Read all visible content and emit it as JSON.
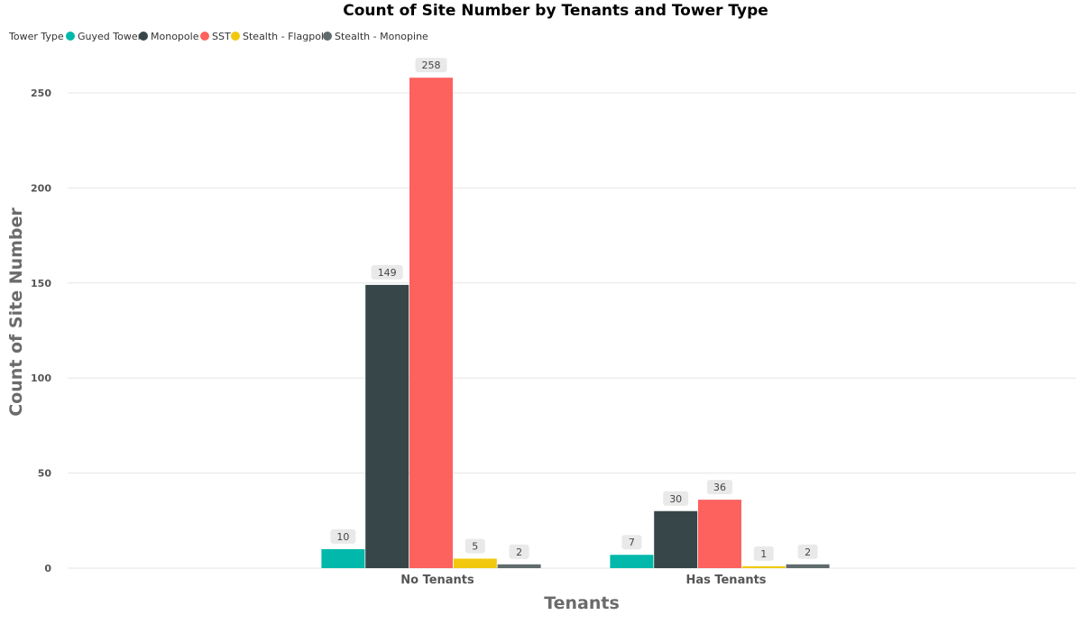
{
  "chart_data": {
    "type": "bar",
    "title": "Count of Site Number by Tenants and Tower Type",
    "xlabel": "Tenants",
    "ylabel": "Count of Site Number",
    "legend_title": "Tower Type",
    "legend_position": "top-left",
    "categories": [
      "No Tenants",
      "Has Tenants"
    ],
    "series": [
      {
        "name": "Guyed Tower",
        "values": [
          10,
          7
        ],
        "color": "#01B8AA"
      },
      {
        "name": "Monopole",
        "values": [
          149,
          30
        ],
        "color": "#374649"
      },
      {
        "name": "SST",
        "values": [
          258,
          36
        ],
        "color": "#FD625E"
      },
      {
        "name": "Stealth - Flagpole",
        "values": [
          5,
          1
        ],
        "color": "#F2C80F"
      },
      {
        "name": "Stealth - Monopine",
        "values": [
          2,
          2
        ],
        "color": "#5F6B6D"
      }
    ],
    "yticks": [
      "0",
      "50",
      "100",
      "150",
      "200",
      "250"
    ],
    "ylim": [
      0,
      262
    ],
    "grid": true,
    "data_labels": true
  }
}
